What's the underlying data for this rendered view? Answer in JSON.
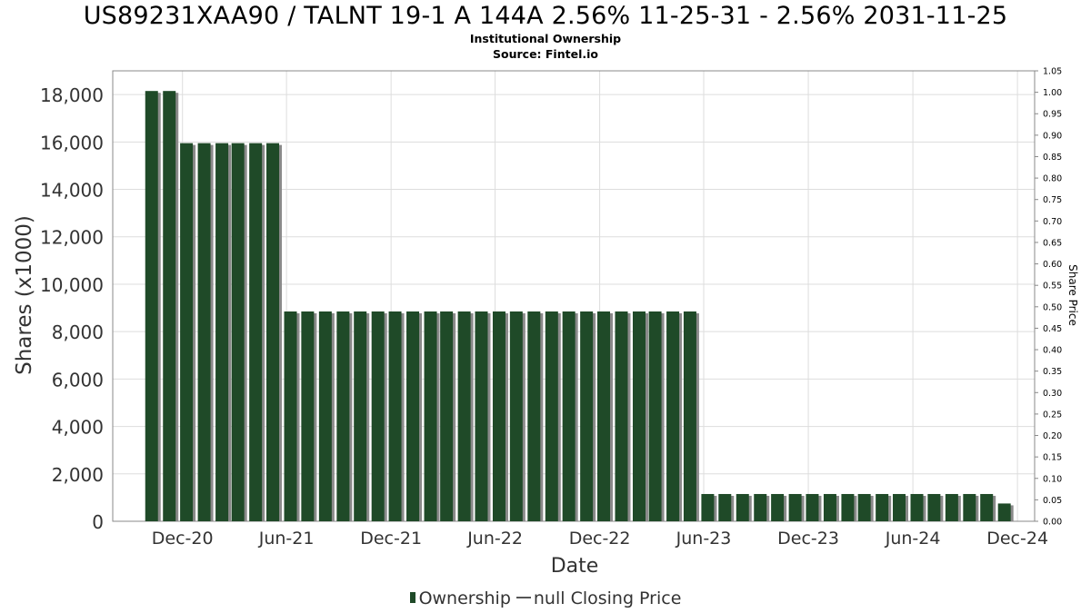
{
  "header": {
    "title": "US89231XAA90 / TALNT 19-1 A 144A 2.56% 11-25-31 - 2.56% 2031-11-25",
    "subtitle": "Institutional Ownership",
    "source": "Source: Fintel.io"
  },
  "legend": {
    "ownership_label": "Ownership",
    "price_label": "null Closing Price"
  },
  "colors": {
    "bar": "#1f4a28",
    "bar_shadow": "#8a8a8a",
    "grid": "#dddddd",
    "axis_text": "#333333"
  },
  "chart_data": {
    "type": "bar",
    "xlabel": "Date",
    "ylabel": "Shares (x1000)",
    "y2label": "Share Price",
    "ylim": [
      0,
      19000
    ],
    "yticks": [
      0,
      2000,
      4000,
      6000,
      8000,
      10000,
      12000,
      14000,
      16000,
      18000
    ],
    "ytick_labels": [
      "0",
      "2,000",
      "4,000",
      "6,000",
      "8,000",
      "10,000",
      "12,000",
      "14,000",
      "16,000",
      "18,000"
    ],
    "y2lim": [
      0,
      1.05
    ],
    "y2ticks": [
      "0.00",
      "0.05",
      "0.10",
      "0.15",
      "0.20",
      "0.25",
      "0.30",
      "0.35",
      "0.40",
      "0.45",
      "0.50",
      "0.55",
      "0.60",
      "0.65",
      "0.70",
      "0.75",
      "0.80",
      "0.85",
      "0.90",
      "0.95",
      "1.00",
      "1.05"
    ],
    "xlim": [
      "2020-08-01",
      "2024-12-31"
    ],
    "xticks": [
      {
        "date": "2020-12-01",
        "label": "Dec-20"
      },
      {
        "date": "2021-06-01",
        "label": "Jun-21"
      },
      {
        "date": "2021-12-01",
        "label": "Dec-21"
      },
      {
        "date": "2022-06-01",
        "label": "Jun-22"
      },
      {
        "date": "2022-12-01",
        "label": "Dec-22"
      },
      {
        "date": "2023-06-01",
        "label": "Jun-23"
      },
      {
        "date": "2023-12-01",
        "label": "Dec-23"
      },
      {
        "date": "2024-06-01",
        "label": "Jun-24"
      },
      {
        "date": "2024-12-01",
        "label": "Dec-24"
      }
    ],
    "grid": true,
    "legend_position": "bottom",
    "series": [
      {
        "name": "Ownership",
        "x": [
          "2020-10-08",
          "2020-11-08",
          "2020-12-08",
          "2021-01-08",
          "2021-02-08",
          "2021-03-08",
          "2021-04-08",
          "2021-05-08",
          "2021-06-08",
          "2021-07-08",
          "2021-08-08",
          "2021-09-08",
          "2021-10-08",
          "2021-11-08",
          "2021-12-08",
          "2022-01-08",
          "2022-02-08",
          "2022-03-08",
          "2022-04-08",
          "2022-05-08",
          "2022-06-08",
          "2022-07-08",
          "2022-08-08",
          "2022-09-08",
          "2022-10-08",
          "2022-11-08",
          "2022-12-08",
          "2023-01-08",
          "2023-02-08",
          "2023-03-08",
          "2023-04-08",
          "2023-05-08",
          "2023-06-08",
          "2023-07-08",
          "2023-08-08",
          "2023-09-08",
          "2023-10-08",
          "2023-11-08",
          "2023-12-08",
          "2024-01-08",
          "2024-02-08",
          "2024-03-08",
          "2024-04-08",
          "2024-05-08",
          "2024-06-08",
          "2024-07-08",
          "2024-08-08",
          "2024-09-08",
          "2024-10-08",
          "2024-11-08"
        ],
        "values": [
          18150,
          18150,
          15950,
          15950,
          15950,
          15950,
          15950,
          15950,
          8850,
          8850,
          8850,
          8850,
          8850,
          8850,
          8850,
          8850,
          8850,
          8850,
          8850,
          8850,
          8850,
          8850,
          8850,
          8850,
          8850,
          8850,
          8850,
          8850,
          8850,
          8850,
          8850,
          8850,
          1150,
          1150,
          1150,
          1150,
          1150,
          1150,
          1150,
          1150,
          1150,
          1150,
          1150,
          1150,
          1150,
          1150,
          1150,
          1150,
          1150,
          750
        ]
      }
    ]
  }
}
